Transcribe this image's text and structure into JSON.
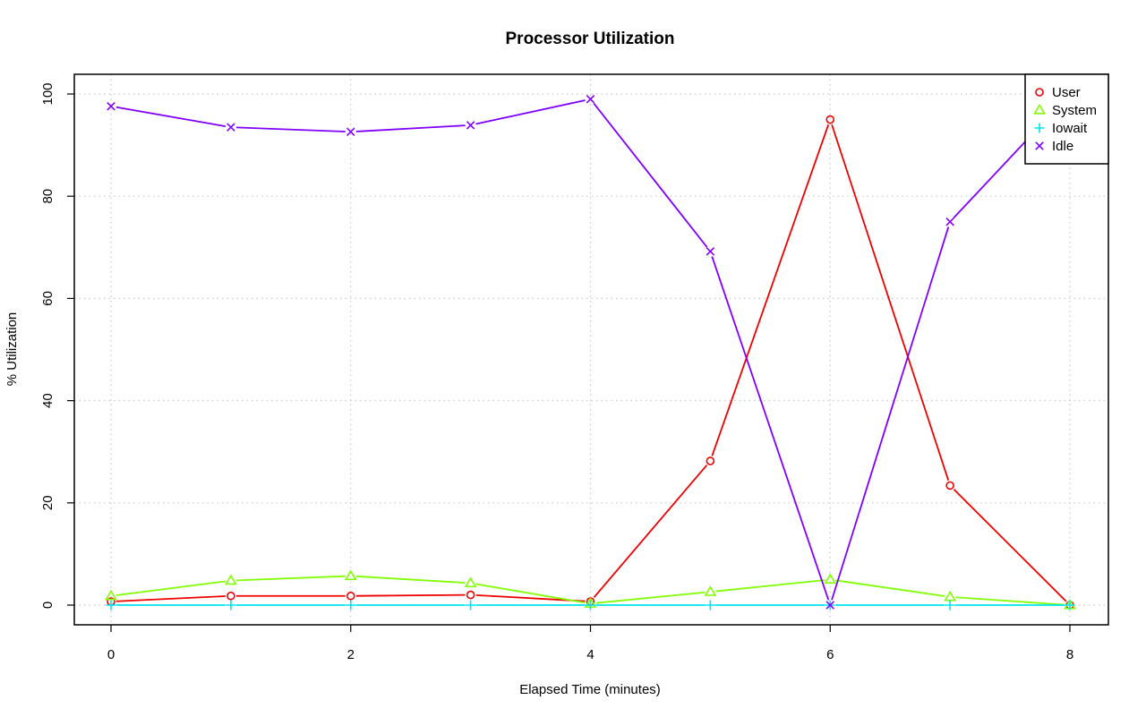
{
  "chart_data": {
    "type": "line",
    "title": "Processor Utilization",
    "xlabel": "Elapsed Time (minutes)",
    "ylabel": "% Utilization",
    "x": [
      0,
      1,
      2,
      3,
      4,
      5,
      6,
      7,
      8
    ],
    "xlim": [
      0,
      8
    ],
    "ylim": [
      0,
      100
    ],
    "xticks": [
      0,
      2,
      4,
      6,
      8
    ],
    "yticks": [
      0,
      20,
      40,
      60,
      80,
      100
    ],
    "grid": true,
    "legend_position": "top-right",
    "series": [
      {
        "name": "User",
        "color": "#ee0000",
        "marker": "circle",
        "values": [
          0.7,
          1.8,
          1.8,
          2.0,
          0.7,
          28.2,
          95.0,
          23.4,
          0.0
        ]
      },
      {
        "name": "System",
        "color": "#80ff00",
        "marker": "triangle",
        "values": [
          1.8,
          4.8,
          5.7,
          4.3,
          0.3,
          2.6,
          5.0,
          1.6,
          0.0
        ]
      },
      {
        "name": "Iowait",
        "color": "#00e5ee",
        "marker": "plus",
        "values": [
          0,
          0,
          0,
          0,
          0,
          0,
          0,
          0,
          0
        ]
      },
      {
        "name": "Idle",
        "color": "#8000ff",
        "marker": "cross",
        "values": [
          97.6,
          93.5,
          92.6,
          93.9,
          99.0,
          69.2,
          0.0,
          75.0,
          100.0
        ]
      }
    ]
  }
}
